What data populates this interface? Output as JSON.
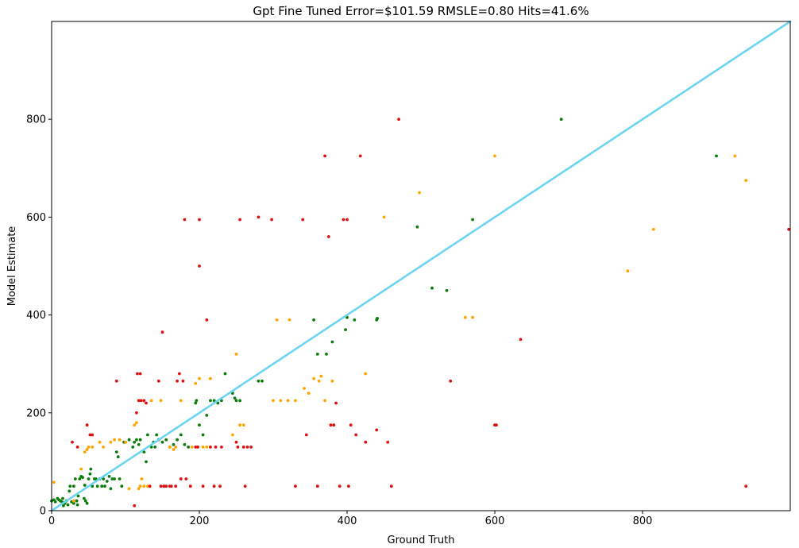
{
  "chart_data": {
    "type": "scatter",
    "title": "Gpt Fine Tuned Error=$101.59 RMSLE=0.80 Hits=41.6%",
    "xlabel": "Ground Truth",
    "ylabel": "Model Estimate",
    "xlim": [
      0,
      1000
    ],
    "ylim": [
      0,
      1000
    ],
    "xticks": [
      0,
      200,
      400,
      600,
      800
    ],
    "yticks": [
      0,
      200,
      400,
      600,
      800
    ],
    "tick_labels_x": [
      "0",
      "200",
      "400",
      "600",
      "800"
    ],
    "tick_labels_y": [
      "0",
      "200",
      "400",
      "600",
      "800"
    ],
    "reference_line": {
      "from": [
        0,
        0
      ],
      "to": [
        1000,
        1000
      ],
      "color": "#6dd4f2"
    },
    "colors": {
      "green": "#0a7d0a",
      "orange": "#ffa500",
      "red": "#dd1111"
    },
    "series": [
      {
        "name": "green",
        "points": [
          [
            0,
            20
          ],
          [
            3,
            22
          ],
          [
            5,
            18
          ],
          [
            8,
            25
          ],
          [
            10,
            22
          ],
          [
            12,
            20
          ],
          [
            14,
            18
          ],
          [
            15,
            25
          ],
          [
            16,
            10
          ],
          [
            18,
            15
          ],
          [
            20,
            20
          ],
          [
            22,
            12
          ],
          [
            24,
            40
          ],
          [
            25,
            50
          ],
          [
            27,
            18
          ],
          [
            30,
            15
          ],
          [
            30,
            50
          ],
          [
            32,
            65
          ],
          [
            34,
            20
          ],
          [
            35,
            12
          ],
          [
            36,
            30
          ],
          [
            38,
            65
          ],
          [
            40,
            70
          ],
          [
            42,
            68
          ],
          [
            44,
            25
          ],
          [
            45,
            52
          ],
          [
            46,
            20
          ],
          [
            48,
            15
          ],
          [
            50,
            65
          ],
          [
            52,
            75
          ],
          [
            53,
            85
          ],
          [
            55,
            50
          ],
          [
            58,
            65
          ],
          [
            60,
            65
          ],
          [
            62,
            50
          ],
          [
            65,
            65
          ],
          [
            68,
            50
          ],
          [
            70,
            65
          ],
          [
            72,
            50
          ],
          [
            75,
            60
          ],
          [
            78,
            70
          ],
          [
            80,
            45
          ],
          [
            82,
            65
          ],
          [
            85,
            65
          ],
          [
            88,
            120
          ],
          [
            90,
            110
          ],
          [
            92,
            65
          ],
          [
            95,
            50
          ],
          [
            98,
            140
          ],
          [
            100,
            140
          ],
          [
            105,
            145
          ],
          [
            110,
            130
          ],
          [
            112,
            140
          ],
          [
            115,
            145
          ],
          [
            118,
            135
          ],
          [
            120,
            145
          ],
          [
            125,
            120
          ],
          [
            128,
            100
          ],
          [
            130,
            155
          ],
          [
            135,
            130
          ],
          [
            138,
            140
          ],
          [
            140,
            130
          ],
          [
            142,
            155
          ],
          [
            145,
            145
          ],
          [
            150,
            140
          ],
          [
            155,
            145
          ],
          [
            160,
            130
          ],
          [
            165,
            135
          ],
          [
            170,
            145
          ],
          [
            175,
            155
          ],
          [
            180,
            135
          ],
          [
            185,
            130
          ],
          [
            195,
            220
          ],
          [
            196,
            225
          ],
          [
            200,
            175
          ],
          [
            205,
            155
          ],
          [
            210,
            195
          ],
          [
            215,
            225
          ],
          [
            220,
            225
          ],
          [
            225,
            220
          ],
          [
            230,
            225
          ],
          [
            235,
            280
          ],
          [
            245,
            240
          ],
          [
            248,
            230
          ],
          [
            250,
            225
          ],
          [
            255,
            225
          ],
          [
            280,
            265
          ],
          [
            285,
            265
          ],
          [
            355,
            390
          ],
          [
            360,
            320
          ],
          [
            372,
            320
          ],
          [
            380,
            345
          ],
          [
            398,
            370
          ],
          [
            400,
            395
          ],
          [
            410,
            390
          ],
          [
            440,
            390
          ],
          [
            441,
            393
          ],
          [
            495,
            580
          ],
          [
            515,
            455
          ],
          [
            535,
            450
          ],
          [
            570,
            595
          ],
          [
            690,
            800
          ],
          [
            900,
            725
          ]
        ]
      },
      {
        "name": "orange",
        "points": [
          [
            3,
            58
          ],
          [
            30,
            20
          ],
          [
            40,
            85
          ],
          [
            45,
            120
          ],
          [
            48,
            125
          ],
          [
            50,
            130
          ],
          [
            55,
            130
          ],
          [
            65,
            140
          ],
          [
            70,
            130
          ],
          [
            80,
            140
          ],
          [
            85,
            145
          ],
          [
            92,
            145
          ],
          [
            100,
            140
          ],
          [
            105,
            45
          ],
          [
            112,
            175
          ],
          [
            115,
            180
          ],
          [
            118,
            45
          ],
          [
            120,
            50
          ],
          [
            122,
            65
          ],
          [
            125,
            50
          ],
          [
            130,
            50
          ],
          [
            135,
            225
          ],
          [
            148,
            225
          ],
          [
            160,
            130
          ],
          [
            165,
            125
          ],
          [
            168,
            130
          ],
          [
            175,
            225
          ],
          [
            190,
            130
          ],
          [
            195,
            260
          ],
          [
            200,
            270
          ],
          [
            205,
            130
          ],
          [
            210,
            130
          ],
          [
            215,
            270
          ],
          [
            245,
            155
          ],
          [
            250,
            320
          ],
          [
            255,
            175
          ],
          [
            260,
            175
          ],
          [
            300,
            225
          ],
          [
            305,
            390
          ],
          [
            310,
            225
          ],
          [
            320,
            225
          ],
          [
            322,
            390
          ],
          [
            330,
            225
          ],
          [
            342,
            250
          ],
          [
            348,
            240
          ],
          [
            355,
            270
          ],
          [
            362,
            265
          ],
          [
            365,
            275
          ],
          [
            370,
            225
          ],
          [
            380,
            265
          ],
          [
            425,
            280
          ],
          [
            450,
            600
          ],
          [
            498,
            650
          ],
          [
            560,
            395
          ],
          [
            570,
            395
          ],
          [
            600,
            725
          ],
          [
            780,
            490
          ],
          [
            815,
            575
          ],
          [
            925,
            725
          ],
          [
            940,
            675
          ]
        ]
      },
      {
        "name": "red",
        "points": [
          [
            28,
            140
          ],
          [
            35,
            130
          ],
          [
            48,
            175
          ],
          [
            52,
            155
          ],
          [
            55,
            155
          ],
          [
            88,
            265
          ],
          [
            112,
            10
          ],
          [
            115,
            200
          ],
          [
            116,
            280
          ],
          [
            118,
            225
          ],
          [
            120,
            280
          ],
          [
            121,
            225
          ],
          [
            125,
            225
          ],
          [
            128,
            220
          ],
          [
            133,
            50
          ],
          [
            145,
            265
          ],
          [
            148,
            50
          ],
          [
            150,
            365
          ],
          [
            152,
            50
          ],
          [
            155,
            50
          ],
          [
            160,
            50
          ],
          [
            162,
            50
          ],
          [
            168,
            50
          ],
          [
            170,
            265
          ],
          [
            173,
            280
          ],
          [
            175,
            65
          ],
          [
            178,
            265
          ],
          [
            180,
            595
          ],
          [
            182,
            65
          ],
          [
            188,
            50
          ],
          [
            195,
            130
          ],
          [
            198,
            130
          ],
          [
            200,
            500
          ],
          [
            200,
            595
          ],
          [
            205,
            50
          ],
          [
            210,
            390
          ],
          [
            215,
            130
          ],
          [
            220,
            50
          ],
          [
            222,
            130
          ],
          [
            228,
            50
          ],
          [
            230,
            130
          ],
          [
            250,
            140
          ],
          [
            252,
            130
          ],
          [
            255,
            595
          ],
          [
            260,
            130
          ],
          [
            262,
            50
          ],
          [
            265,
            130
          ],
          [
            270,
            130
          ],
          [
            280,
            600
          ],
          [
            298,
            595
          ],
          [
            330,
            50
          ],
          [
            340,
            595
          ],
          [
            345,
            155
          ],
          [
            360,
            50
          ],
          [
            370,
            725
          ],
          [
            375,
            560
          ],
          [
            378,
            175
          ],
          [
            382,
            175
          ],
          [
            385,
            220
          ],
          [
            390,
            50
          ],
          [
            395,
            595
          ],
          [
            400,
            595
          ],
          [
            402,
            50
          ],
          [
            405,
            175
          ],
          [
            412,
            155
          ],
          [
            418,
            725
          ],
          [
            425,
            140
          ],
          [
            440,
            165
          ],
          [
            455,
            140
          ],
          [
            460,
            50
          ],
          [
            470,
            800
          ],
          [
            540,
            265
          ],
          [
            600,
            175
          ],
          [
            602,
            175
          ],
          [
            635,
            350
          ],
          [
            940,
            50
          ],
          [
            998,
            575
          ]
        ]
      }
    ]
  }
}
